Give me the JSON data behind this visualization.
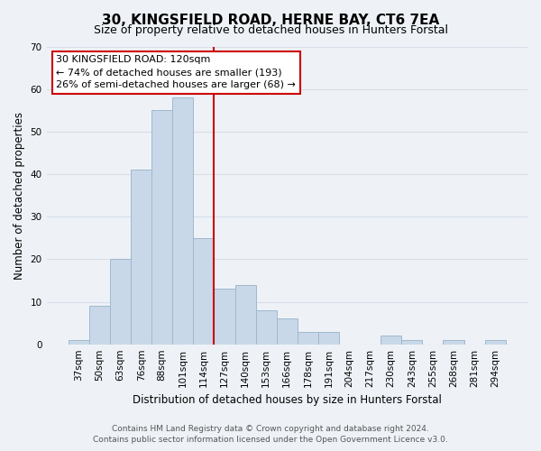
{
  "title": "30, KINGSFIELD ROAD, HERNE BAY, CT6 7EA",
  "subtitle": "Size of property relative to detached houses in Hunters Forstal",
  "xlabel": "Distribution of detached houses by size in Hunters Forstal",
  "ylabel": "Number of detached properties",
  "bar_labels": [
    "37sqm",
    "50sqm",
    "63sqm",
    "76sqm",
    "88sqm",
    "101sqm",
    "114sqm",
    "127sqm",
    "140sqm",
    "153sqm",
    "166sqm",
    "178sqm",
    "191sqm",
    "204sqm",
    "217sqm",
    "230sqm",
    "243sqm",
    "255sqm",
    "268sqm",
    "281sqm",
    "294sqm"
  ],
  "bar_heights": [
    1,
    9,
    20,
    41,
    55,
    58,
    25,
    13,
    14,
    8,
    6,
    3,
    3,
    0,
    0,
    2,
    1,
    0,
    1,
    0,
    1
  ],
  "bar_color": "#c8d8e8",
  "bar_edge_color": "#a0b8cc",
  "vline_x_index": 6,
  "vline_color": "#cc0000",
  "ylim": [
    0,
    70
  ],
  "yticks": [
    0,
    10,
    20,
    30,
    40,
    50,
    60,
    70
  ],
  "annotation_line1": "30 KINGSFIELD ROAD: 120sqm",
  "annotation_line2": "← 74% of detached houses are smaller (193)",
  "annotation_line3": "26% of semi-detached houses are larger (68) →",
  "footer_line1": "Contains HM Land Registry data © Crown copyright and database right 2024.",
  "footer_line2": "Contains public sector information licensed under the Open Government Licence v3.0.",
  "bg_color": "#eef2f7",
  "grid_color": "#d8dfe8",
  "title_fontsize": 11,
  "subtitle_fontsize": 9,
  "axis_label_fontsize": 8.5,
  "tick_fontsize": 7.5,
  "annotation_fontsize": 8,
  "footer_fontsize": 6.5
}
